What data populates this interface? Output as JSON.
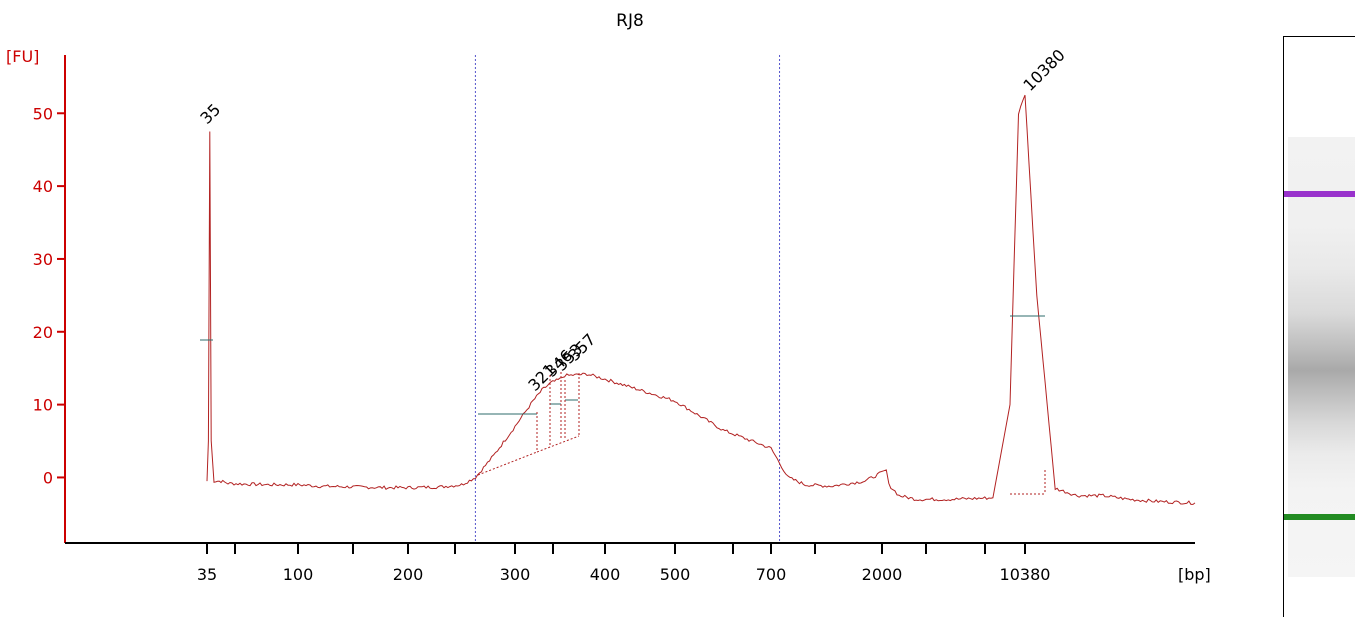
{
  "chart_data": {
    "type": "line",
    "title": "RJ8",
    "ylabel": "[FU]",
    "xlabel": "[bp]",
    "ylim": [
      -9,
      58
    ],
    "yticks": [
      0,
      10,
      20,
      30,
      40,
      50
    ],
    "xtick_labels": [
      "35",
      "100",
      "200",
      "300",
      "400",
      "500",
      "700",
      "2000",
      "10380"
    ],
    "grid": false,
    "series": [
      {
        "color": "#b22222",
        "x": [
          35,
          36,
          37,
          38,
          40,
          45,
          50,
          60,
          80,
          100,
          120,
          150,
          180,
          200,
          230,
          250,
          263,
          280,
          300,
          320,
          330,
          340,
          350,
          355,
          360,
          380,
          400,
          450,
          500,
          600,
          700,
          800,
          900,
          1100,
          1400,
          1800,
          2100,
          2250,
          2400,
          3000,
          4000,
          6000,
          8500,
          9500,
          10000,
          10380,
          10700,
          11200,
          11800,
          12500,
          13200,
          14000,
          15000
        ],
        "y": [
          -0.5,
          5,
          47.5,
          5,
          -0.5,
          -0.5,
          -0.8,
          -0.9,
          -1.0,
          -1.0,
          -1.2,
          -1.3,
          -1.4,
          -1.4,
          -1.3,
          -1.0,
          0.0,
          3.0,
          7.0,
          10.5,
          12.0,
          13.0,
          13.5,
          14.0,
          14.0,
          14.2,
          13.5,
          12.0,
          10.5,
          6.5,
          4.0,
          2.0,
          0.0,
          -1.0,
          -1.2,
          -0.5,
          0.8,
          1.0,
          -1.0,
          -2.5,
          -3.0,
          -3.0,
          -2.8,
          10,
          50,
          52.5,
          25,
          -1.5,
          -2.5,
          -2.5,
          -3.0,
          -3.3,
          -3.5
        ]
      }
    ],
    "peaks": [
      {
        "label": "35",
        "color": "#228b22"
      },
      {
        "label": "321",
        "color": "#000000"
      },
      {
        "label": "346",
        "color": "#000000"
      },
      {
        "label": "353",
        "color": "#000000"
      },
      {
        "label": "357",
        "color": "#000000"
      },
      {
        "label": "10380",
        "color": "#9932cc"
      }
    ],
    "region_markers_bp": [
      263,
      800
    ],
    "gel_bands": [
      {
        "color": "#9932cc",
        "fraction": 0.36
      },
      {
        "color": "#228b22",
        "fraction": 0.72
      }
    ]
  }
}
